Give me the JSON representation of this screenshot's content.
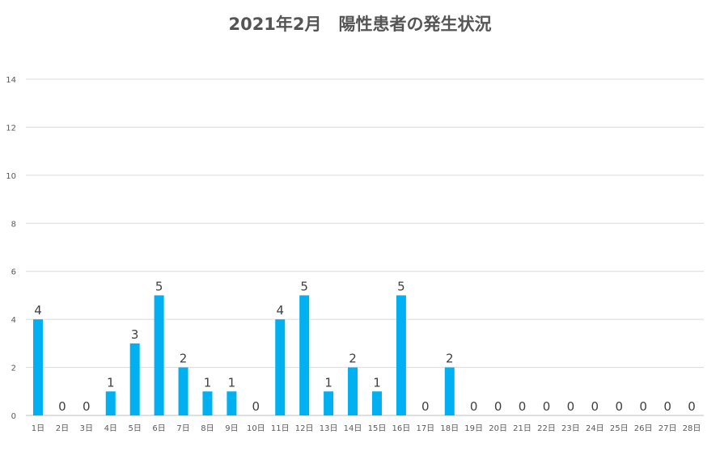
{
  "chart_data": {
    "type": "bar",
    "title": "2021年2月　陽性患者の発生状況",
    "xlabel": "",
    "ylabel": "",
    "ylim": [
      0,
      14
    ],
    "yticks": [
      0,
      2,
      4,
      6,
      8,
      10,
      12,
      14
    ],
    "grid": true,
    "legend": "none",
    "bar_color": "#00B0F0",
    "categories": [
      "1日",
      "2日",
      "3日",
      "4日",
      "5日",
      "6日",
      "7日",
      "8日",
      "9日",
      "10日",
      "11日",
      "12日",
      "13日",
      "14日",
      "15日",
      "16日",
      "17日",
      "18日",
      "19日",
      "20日",
      "21日",
      "22日",
      "23日",
      "24日",
      "25日",
      "26日",
      "27日",
      "28日"
    ],
    "values": [
      4,
      0,
      0,
      1,
      3,
      5,
      2,
      1,
      1,
      0,
      4,
      5,
      1,
      2,
      1,
      5,
      0,
      2,
      0,
      0,
      0,
      0,
      0,
      0,
      0,
      0,
      0,
      0
    ]
  }
}
